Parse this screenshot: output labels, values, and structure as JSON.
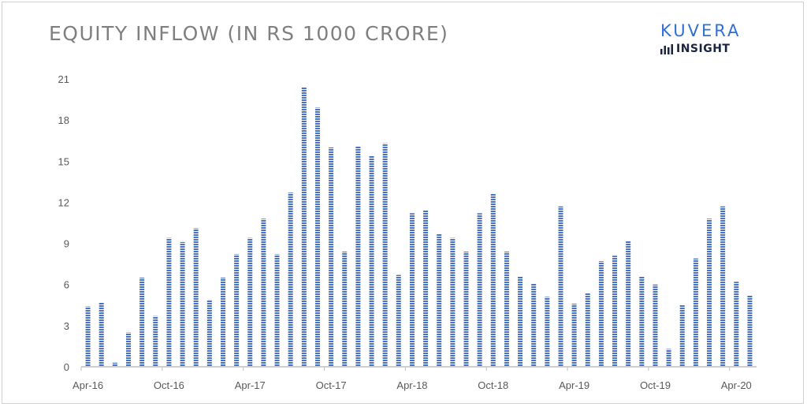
{
  "header": {
    "title": "EQUITY INFLOW (IN RS 1000 CRORE)"
  },
  "brand": {
    "name": "KUVERA",
    "subtitle": "INSIGHT",
    "icon": "bar-chart-icon",
    "color": "#2f6fd6"
  },
  "chart_data": {
    "type": "bar",
    "title": "EQUITY INFLOW (IN RS 1000 CRORE)",
    "xlabel": "",
    "ylabel": "",
    "ylim": [
      0,
      21
    ],
    "yticks": [
      0,
      3,
      6,
      9,
      12,
      15,
      18,
      21
    ],
    "grid": false,
    "bar_color": "#4a72c4",
    "categories": [
      "Apr-16",
      "May-16",
      "Jun-16",
      "Jul-16",
      "Aug-16",
      "Sep-16",
      "Oct-16",
      "Nov-16",
      "Dec-16",
      "Jan-17",
      "Feb-17",
      "Mar-17",
      "Apr-17",
      "May-17",
      "Jun-17",
      "Jul-17",
      "Aug-17",
      "Sep-17",
      "Oct-17",
      "Nov-17",
      "Dec-17",
      "Jan-18",
      "Feb-18",
      "Mar-18",
      "Apr-18",
      "May-18",
      "Jun-18",
      "Jul-18",
      "Aug-18",
      "Sep-18",
      "Oct-18",
      "Nov-18",
      "Dec-18",
      "Jan-19",
      "Feb-19",
      "Mar-19",
      "Apr-19",
      "May-19",
      "Jun-19",
      "Jul-19",
      "Aug-19",
      "Sep-19",
      "Oct-19",
      "Nov-19",
      "Dec-19",
      "Jan-20",
      "Feb-20",
      "Mar-20",
      "Apr-20",
      "May-20"
    ],
    "values": [
      4.4,
      4.7,
      0.3,
      2.5,
      6.5,
      3.7,
      9.4,
      9.1,
      10.1,
      4.9,
      6.5,
      8.2,
      9.4,
      10.8,
      8.2,
      12.7,
      20.4,
      18.9,
      16.0,
      8.4,
      16.1,
      15.4,
      16.3,
      6.7,
      11.2,
      11.4,
      9.7,
      9.4,
      8.4,
      11.2,
      12.6,
      8.4,
      6.6,
      6.1,
      5.1,
      11.7,
      4.6,
      5.4,
      7.7,
      8.1,
      9.2,
      6.6,
      6.0,
      1.3,
      4.5,
      7.9,
      10.8,
      11.7,
      6.2,
      5.2
    ],
    "xtick_labels": [
      "Apr-16",
      "Oct-16",
      "Apr-17",
      "Oct-17",
      "Apr-18",
      "Oct-18",
      "Apr-19",
      "Oct-19",
      "Apr-20"
    ],
    "xtick_indices": [
      0,
      6,
      12,
      18,
      24,
      30,
      36,
      42,
      48
    ]
  }
}
